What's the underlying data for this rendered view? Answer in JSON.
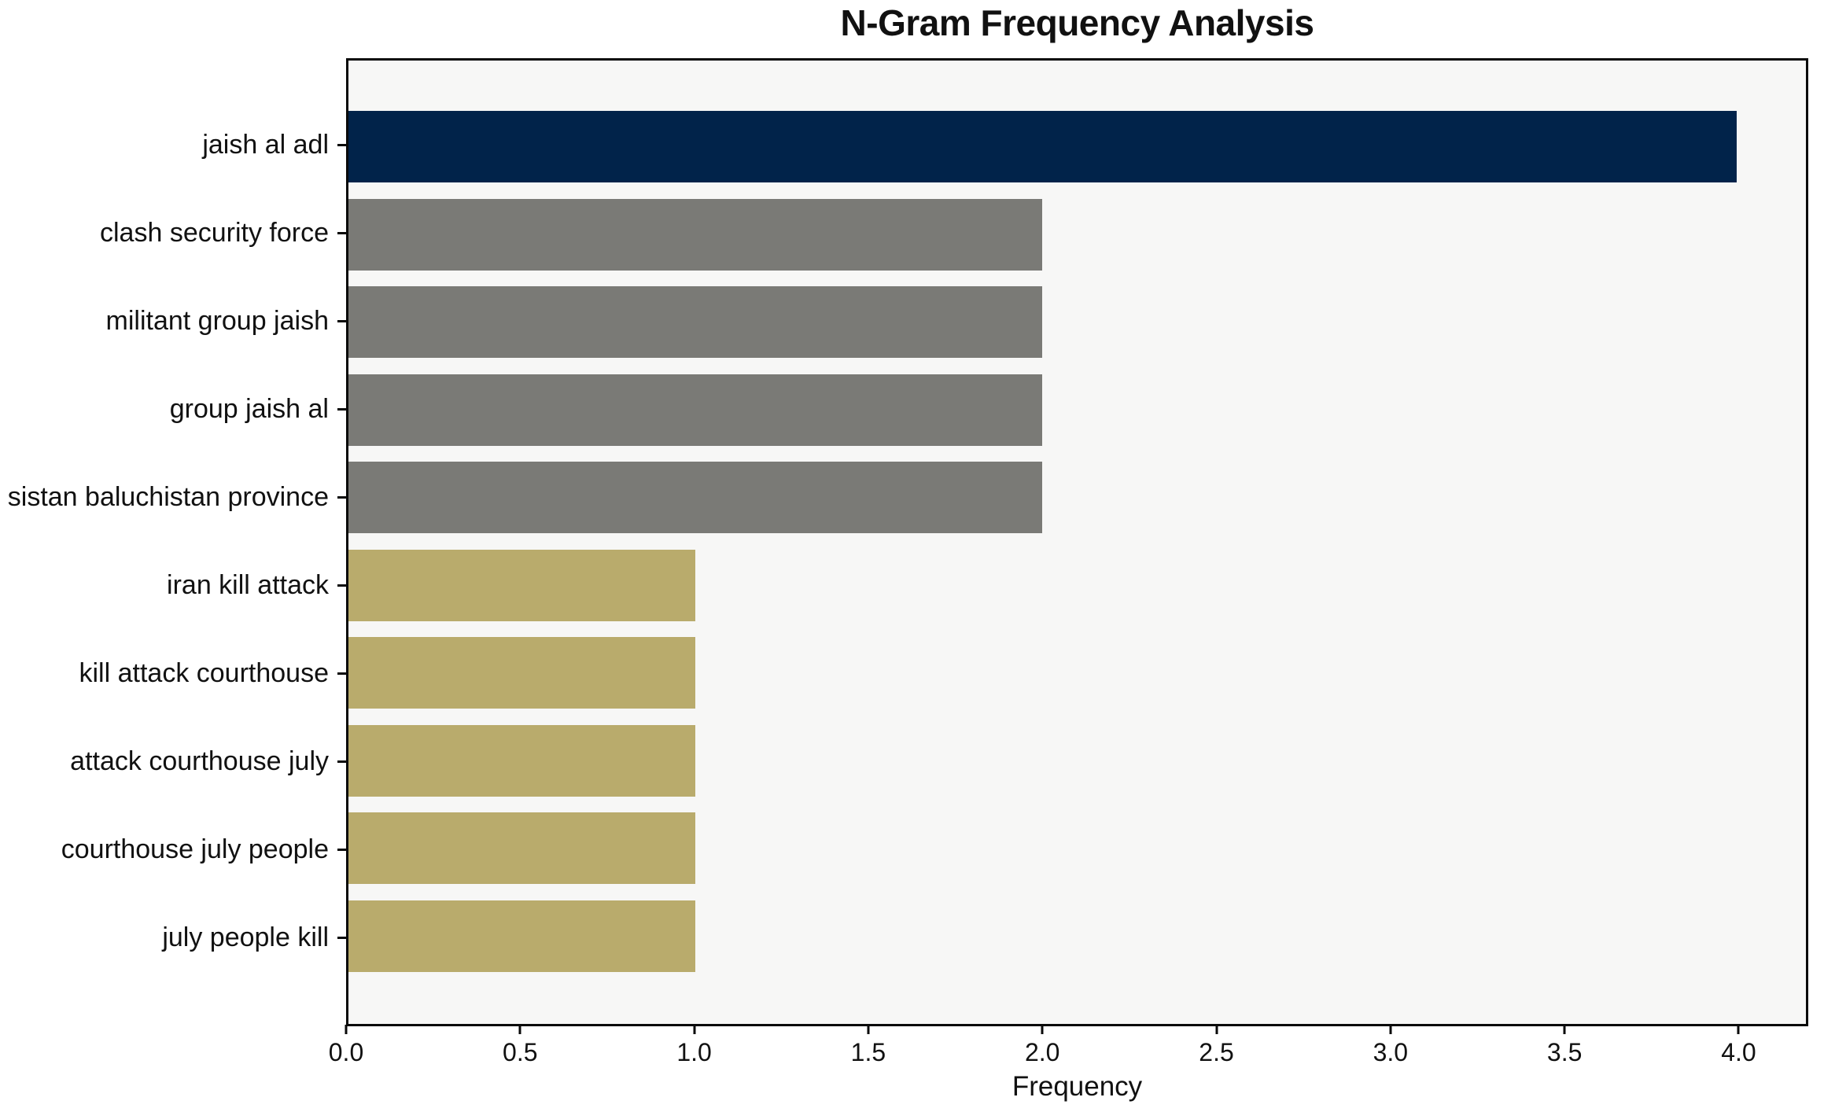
{
  "title": "N-Gram Frequency Analysis",
  "chart_data": {
    "type": "bar",
    "orientation": "horizontal",
    "title": "N-Gram Frequency Analysis",
    "xlabel": "Frequency",
    "ylabel": "",
    "categories": [
      "jaish al adl",
      "clash security force",
      "militant group jaish",
      "group jaish al",
      "sistan baluchistan province",
      "iran kill attack",
      "kill attack courthouse",
      "attack courthouse july",
      "courthouse july people",
      "july people kill"
    ],
    "values": [
      4,
      2,
      2,
      2,
      2,
      1,
      1,
      1,
      1,
      1
    ],
    "bar_colors": [
      "#01234a",
      "#7a7a76",
      "#7a7a76",
      "#7a7a76",
      "#7a7a76",
      "#b9ab6c",
      "#b9ab6c",
      "#b9ab6c",
      "#b9ab6c",
      "#b9ab6c"
    ],
    "xlim": [
      0,
      4.2
    ],
    "xticks": [
      0.0,
      0.5,
      1.0,
      1.5,
      2.0,
      2.5,
      3.0,
      3.5,
      4.0
    ],
    "xtick_labels": [
      "0.0",
      "0.5",
      "1.0",
      "1.5",
      "2.0",
      "2.5",
      "3.0",
      "3.5",
      "4.0"
    ],
    "grid": false,
    "legend": null,
    "colors": {
      "figure_bg": "#ffffff",
      "plot_bg": "#f7f7f6",
      "axis": "#0a0a0a",
      "text": "#111111"
    }
  }
}
